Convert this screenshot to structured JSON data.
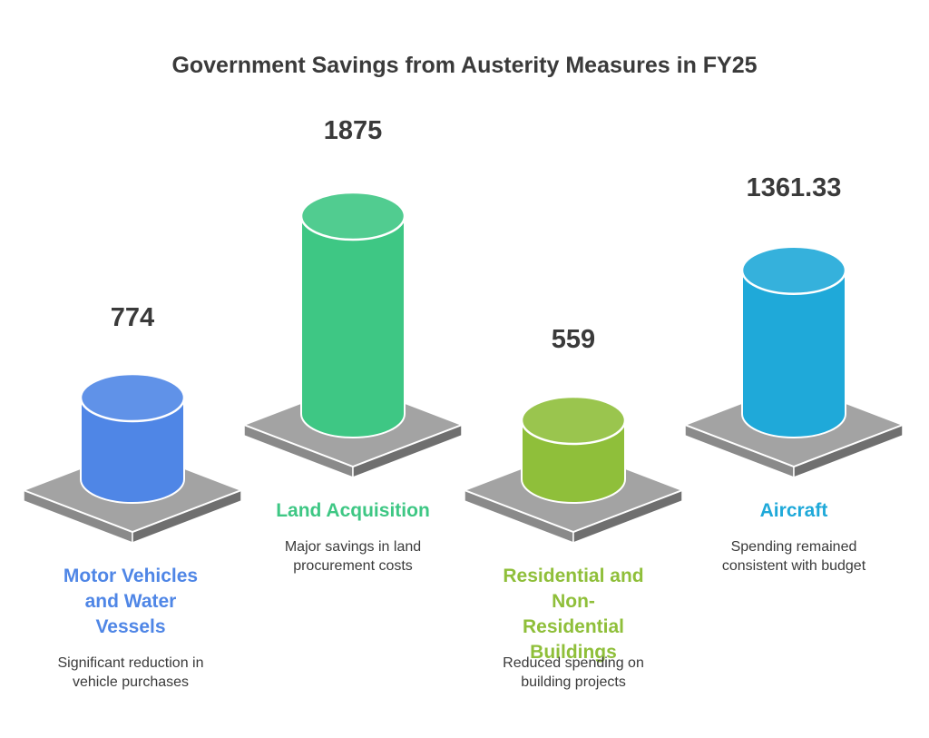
{
  "chart_data": {
    "type": "bar",
    "title": "Government Savings from Austerity Measures in FY25",
    "categories": [
      "Motor Vehicles and Water Vessels",
      "Land Acquisition",
      "Residential and Non-Residential Buildings",
      "Aircraft"
    ],
    "values": [
      774,
      1875,
      559,
      1361.33
    ],
    "value_labels": [
      "774",
      "1875",
      "559",
      "1361.33"
    ],
    "descriptions": [
      "Significant reduction in vehicle purchases",
      "Major savings in land procurement costs",
      "Reduced spending on building projects",
      "Spending remained consistent with budget"
    ],
    "colors": [
      "#4f86e6",
      "#3ec784",
      "#8fbf3a",
      "#1fa9d9"
    ]
  }
}
